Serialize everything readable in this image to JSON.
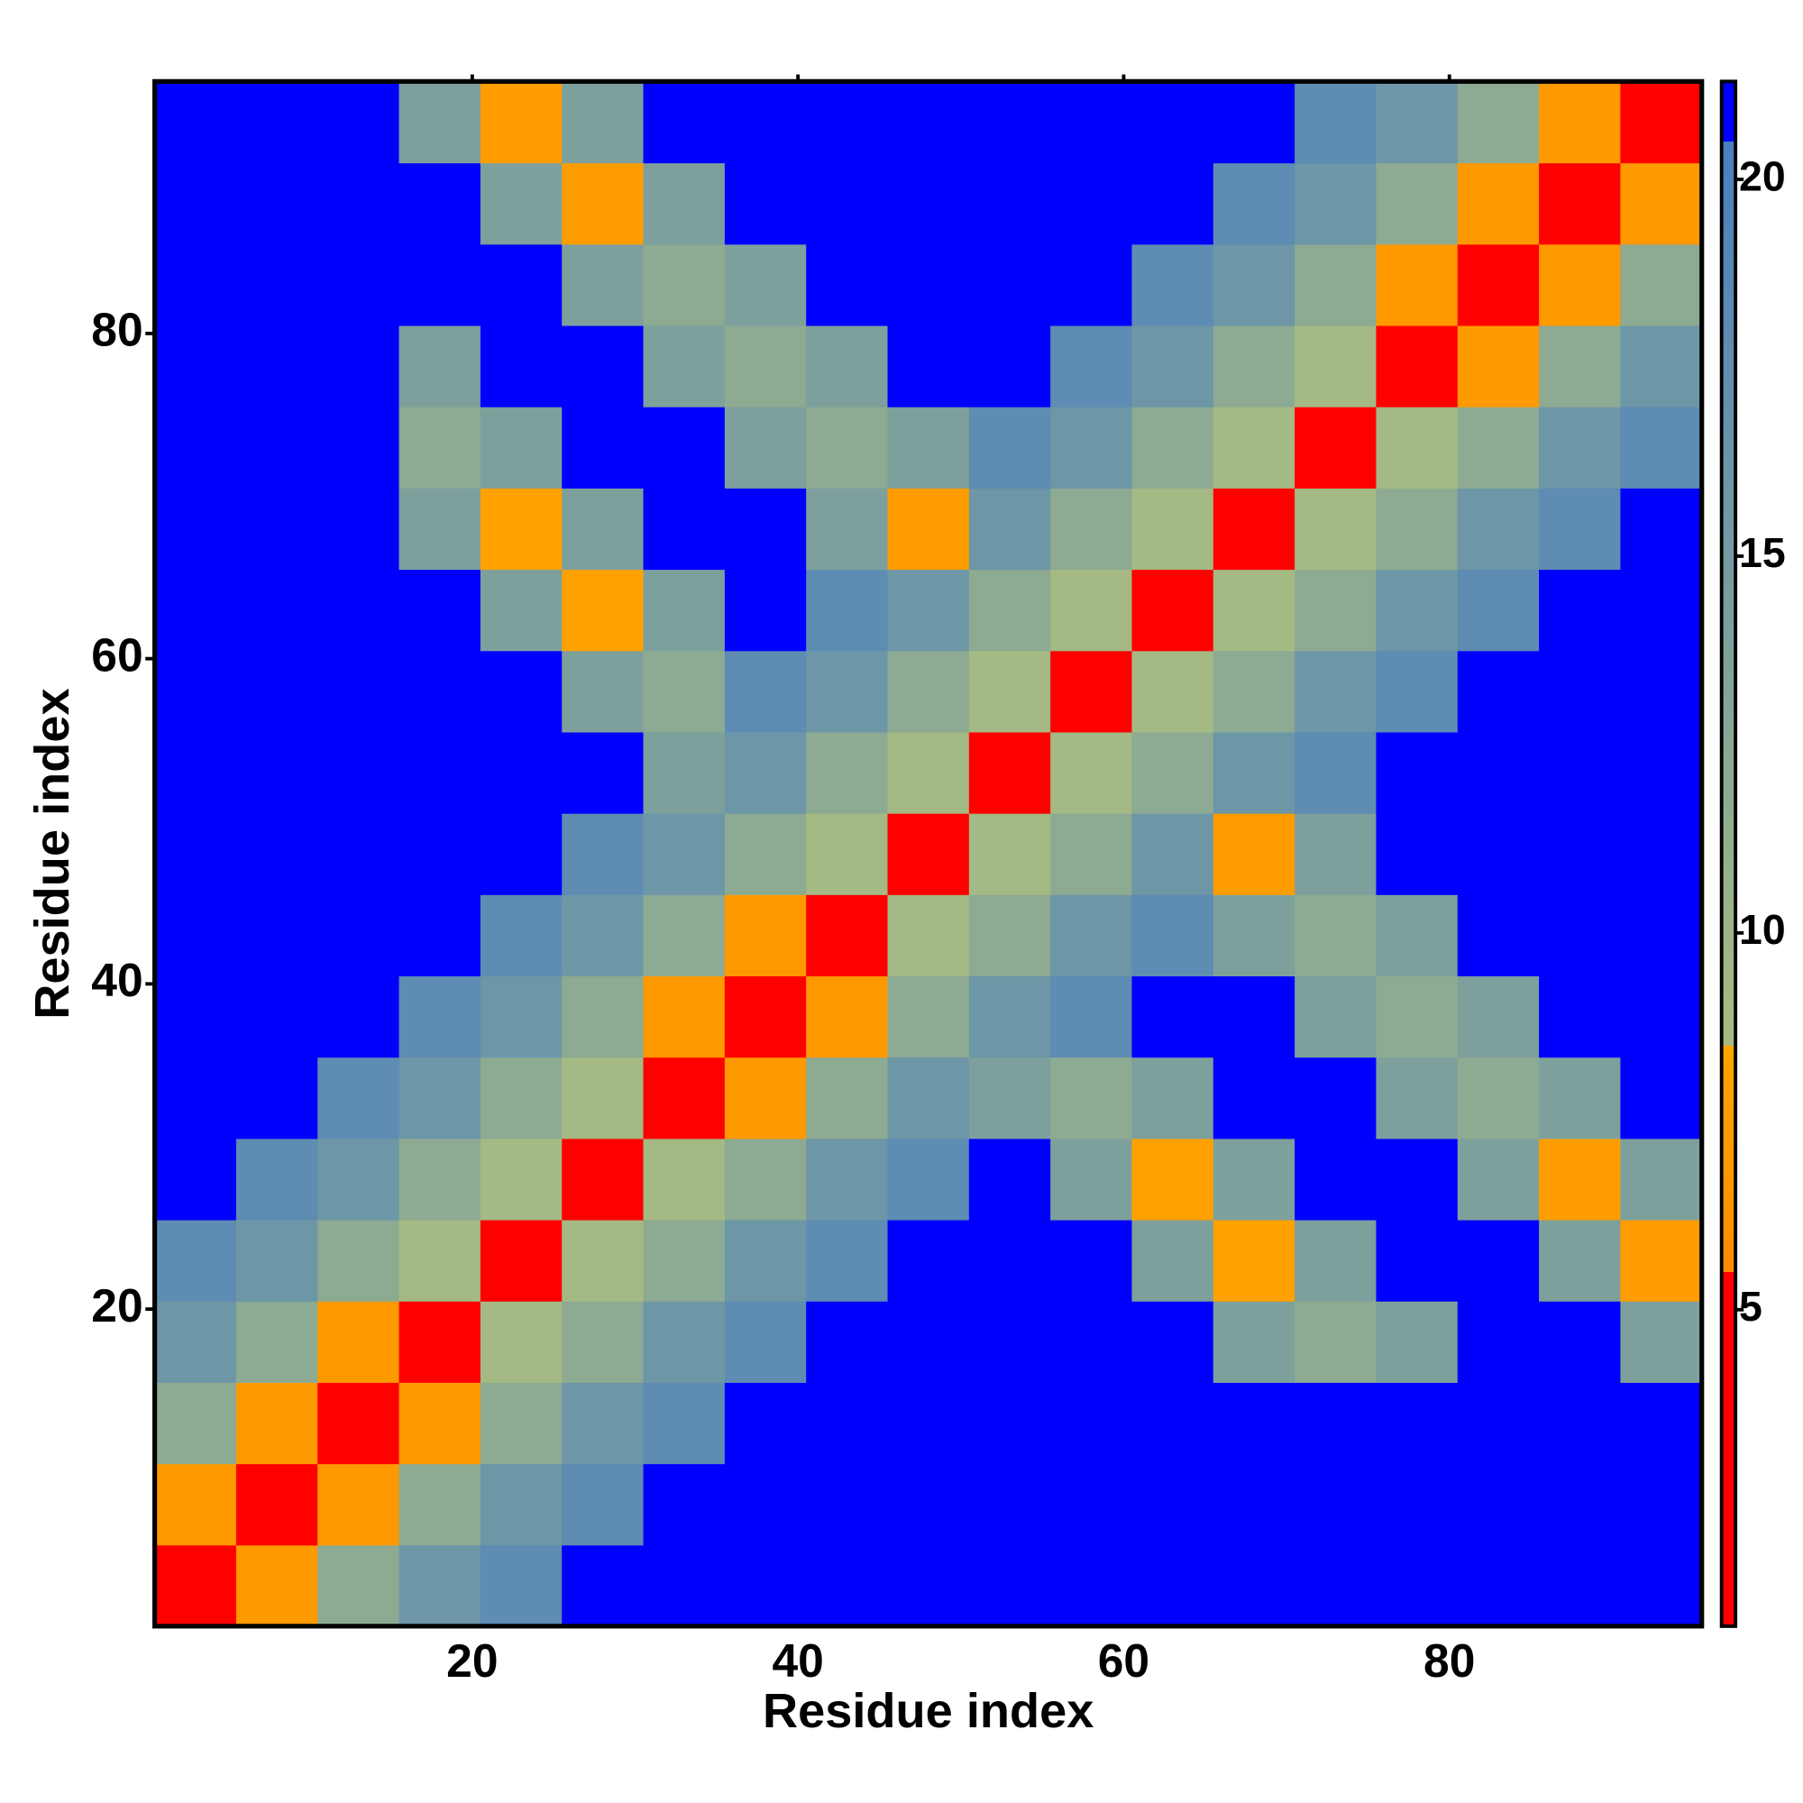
{
  "chart_data": {
    "type": "heatmap",
    "x_label": "Residue index",
    "y_label": "Residue index",
    "x": [
      3,
      8,
      13,
      18,
      23,
      28,
      33,
      38,
      43,
      48,
      53,
      58,
      63,
      68,
      73,
      78,
      83,
      88,
      93
    ],
    "y": [
      3,
      8,
      13,
      18,
      23,
      28,
      33,
      38,
      43,
      48,
      53,
      58,
      63,
      68,
      73,
      78,
      83,
      88,
      93
    ],
    "z": [
      [
        1.5,
        7,
        12,
        16,
        18,
        21.3,
        21.3,
        21.3,
        21.3,
        21.3,
        21.3,
        21.3,
        21.3,
        21.3,
        21.3,
        21.3,
        21.3,
        21.3,
        21.3
      ],
      [
        7,
        1.5,
        7,
        12,
        16,
        18,
        21.3,
        21.3,
        21.3,
        21.3,
        21.3,
        21.3,
        21.3,
        21.3,
        21.3,
        21.3,
        21.3,
        21.3,
        21.3
      ],
      [
        12,
        7,
        1.5,
        7,
        12,
        16,
        18,
        21.3,
        21.3,
        21.3,
        21.3,
        21.3,
        21.3,
        21.3,
        21.3,
        21.3,
        21.3,
        21.3,
        21.3
      ],
      [
        16,
        12,
        7,
        1.5,
        9,
        12,
        16,
        18,
        21.3,
        21.3,
        21.3,
        21.3,
        21.3,
        14,
        12,
        14,
        21.3,
        21.3,
        14
      ],
      [
        18,
        16,
        12,
        9,
        1.5,
        9,
        12,
        16,
        18,
        21.3,
        21.3,
        21.3,
        14,
        8,
        14,
        21.3,
        21.3,
        14,
        7.5
      ],
      [
        21.3,
        18,
        16,
        12,
        9,
        1.5,
        9,
        12,
        16,
        18,
        21.3,
        14,
        8,
        14,
        21.3,
        21.3,
        14,
        7.5,
        14
      ],
      [
        21.3,
        21.3,
        18,
        16,
        12,
        9,
        1.5,
        7,
        12,
        16,
        14,
        12,
        14,
        21.3,
        21.3,
        14,
        12,
        14,
        21.3
      ],
      [
        21.3,
        21.3,
        21.3,
        18,
        16,
        12,
        7,
        1.5,
        7,
        12,
        16,
        18,
        21.3,
        21.3,
        14,
        12,
        14,
        21.3,
        21.3
      ],
      [
        21.3,
        21.3,
        21.3,
        21.3,
        18,
        16,
        12,
        7,
        1.5,
        9,
        12,
        16,
        18,
        14,
        12,
        14,
        21.3,
        21.3,
        21.3
      ],
      [
        21.3,
        21.3,
        21.3,
        21.3,
        21.3,
        18,
        16,
        12,
        9,
        1.5,
        9,
        12,
        16,
        7.5,
        14,
        21.3,
        21.3,
        21.3,
        21.3
      ],
      [
        21.3,
        21.3,
        21.3,
        21.3,
        21.3,
        21.3,
        14,
        16,
        12,
        9,
        1.5,
        9,
        12,
        16,
        18,
        21.3,
        21.3,
        21.3,
        21.3
      ],
      [
        21.3,
        21.3,
        21.3,
        21.3,
        21.3,
        14,
        12,
        18,
        16,
        12,
        9,
        1.5,
        9,
        12,
        16,
        18,
        21.3,
        21.3,
        21.3
      ],
      [
        21.3,
        21.3,
        21.3,
        21.3,
        14,
        8,
        14,
        21.3,
        18,
        16,
        12,
        9,
        1.5,
        9,
        12,
        16,
        18,
        21.3,
        21.3
      ],
      [
        21.3,
        21.3,
        21.3,
        14,
        8,
        14,
        21.3,
        21.3,
        14,
        7.5,
        16,
        12,
        9,
        1.5,
        9,
        12,
        16,
        18,
        21.3
      ],
      [
        21.3,
        21.3,
        21.3,
        12,
        14,
        21.3,
        21.3,
        14,
        12,
        14,
        18,
        16,
        12,
        9,
        1.5,
        9,
        12,
        16,
        18
      ],
      [
        21.3,
        21.3,
        21.3,
        14,
        21.3,
        21.3,
        14,
        12,
        14,
        21.3,
        21.3,
        18,
        16,
        12,
        9,
        1.5,
        7,
        12,
        16
      ],
      [
        21.3,
        21.3,
        21.3,
        21.3,
        21.3,
        14,
        12,
        14,
        21.3,
        21.3,
        21.3,
        21.3,
        18,
        16,
        12,
        7,
        1.5,
        7,
        12
      ],
      [
        21.3,
        21.3,
        21.3,
        21.3,
        14,
        7.5,
        14,
        21.3,
        21.3,
        21.3,
        21.3,
        21.3,
        21.3,
        18,
        16,
        12,
        7,
        1.5,
        7
      ],
      [
        21.3,
        21.3,
        21.3,
        14,
        7.5,
        14,
        21.3,
        21.3,
        21.3,
        21.3,
        21.3,
        21.3,
        21.3,
        21.3,
        18,
        16,
        12,
        7,
        1.5
      ]
    ],
    "xlim": [
      0.5,
      95.5
    ],
    "ylim": [
      0.5,
      95.5
    ],
    "xticks": [
      20,
      40,
      60,
      80
    ],
    "yticks": [
      20,
      40,
      60,
      80
    ],
    "colorbar_lim": [
      0.8,
      21.3
    ],
    "colorbar_ticks": [
      5,
      10,
      15,
      20
    ],
    "colorscale": [
      [
        0.8,
        "#ff0000"
      ],
      [
        5.5,
        "#ff0000"
      ],
      [
        5.5,
        "#ff8c00"
      ],
      [
        8.5,
        "#ffa500"
      ],
      [
        8.5,
        "#a8bc80"
      ],
      [
        20.5,
        "#4a7fbf"
      ],
      [
        20.5,
        "#0000ff"
      ],
      [
        21.3,
        "#0000ff"
      ]
    ]
  }
}
